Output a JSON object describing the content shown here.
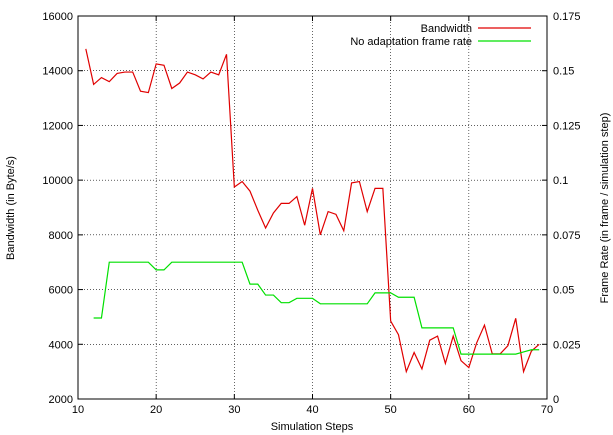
{
  "chart_data": {
    "type": "line",
    "xlabel": "Simulation Steps",
    "ylabel": "Bandwidth (in Byte/s)",
    "y2label": "Frame Rate (in frame / simulation step)",
    "xlim": [
      10,
      70
    ],
    "ylim": [
      2000,
      16000
    ],
    "y2lim": [
      0,
      0.175
    ],
    "x_ticks": [
      "10",
      "20",
      "30",
      "40",
      "50",
      "60",
      "70"
    ],
    "y_ticks": [
      "2000",
      "4000",
      "6000",
      "8000",
      "10000",
      "12000",
      "14000",
      "16000"
    ],
    "y2_ticks": [
      "0",
      "0.025",
      "0.05",
      "0.075",
      "0.1",
      "0.125",
      "0.15",
      "0.175"
    ],
    "grid": true,
    "legend_position": "top-right",
    "series": [
      {
        "name": "Bandwidth",
        "axis": "left",
        "color": "#e00000",
        "x": [
          11,
          12,
          13,
          14,
          15,
          16,
          17,
          18,
          19,
          20,
          21,
          22,
          23,
          24,
          25,
          26,
          27,
          28,
          29,
          30,
          31,
          32,
          33,
          34,
          35,
          36,
          37,
          38,
          39,
          40,
          41,
          42,
          43,
          44,
          45,
          46,
          47,
          48,
          49,
          50,
          51,
          52,
          53,
          54,
          55,
          56,
          57,
          58,
          59,
          60,
          61,
          62,
          63,
          64,
          65,
          66,
          67,
          68,
          69
        ],
        "values": [
          14800,
          13500,
          13750,
          13600,
          13900,
          13950,
          13950,
          13250,
          13200,
          14250,
          14200,
          13350,
          13550,
          13950,
          13850,
          13700,
          13950,
          13850,
          14600,
          9750,
          9950,
          9600,
          8900,
          8250,
          8800,
          9150,
          9150,
          9400,
          8350,
          9700,
          8000,
          8850,
          8750,
          8150,
          9900,
          9950,
          8850,
          9700,
          9700,
          4850,
          4350,
          3000,
          3700,
          3100,
          4150,
          4300,
          3300,
          4300,
          3400,
          3150,
          4050,
          4700,
          3650,
          3650,
          3950,
          4950,
          3000,
          3750,
          4000
        ]
      },
      {
        "name": "No adaptation frame rate",
        "axis": "right",
        "color": "#00e000",
        "x": [
          12,
          13,
          14,
          15,
          16,
          17,
          18,
          19,
          20,
          21,
          22,
          23,
          24,
          25,
          26,
          27,
          28,
          29,
          30,
          31,
          32,
          33,
          34,
          35,
          36,
          37,
          38,
          39,
          40,
          41,
          42,
          43,
          44,
          45,
          46,
          47,
          48,
          49,
          50,
          51,
          52,
          53,
          54,
          55,
          56,
          57,
          58,
          59,
          60,
          61,
          62,
          63,
          64,
          65,
          66,
          67,
          68,
          69
        ],
        "values": [
          0.037,
          0.037,
          0.0625,
          0.0625,
          0.0625,
          0.0625,
          0.0625,
          0.0625,
          0.059,
          0.059,
          0.0625,
          0.0625,
          0.0625,
          0.0625,
          0.0625,
          0.0625,
          0.0625,
          0.0625,
          0.0625,
          0.0625,
          0.0525,
          0.0525,
          0.0475,
          0.0475,
          0.044,
          0.044,
          0.046,
          0.046,
          0.046,
          0.0435,
          0.0435,
          0.0435,
          0.0435,
          0.0435,
          0.0435,
          0.0435,
          0.0485,
          0.0485,
          0.0485,
          0.0465,
          0.0465,
          0.0465,
          0.0325,
          0.0325,
          0.0325,
          0.0325,
          0.0325,
          0.0205,
          0.0205,
          0.0205,
          0.0205,
          0.0205,
          0.0205,
          0.0205,
          0.0205,
          0.0215,
          0.0225,
          0.0225
        ]
      }
    ]
  }
}
